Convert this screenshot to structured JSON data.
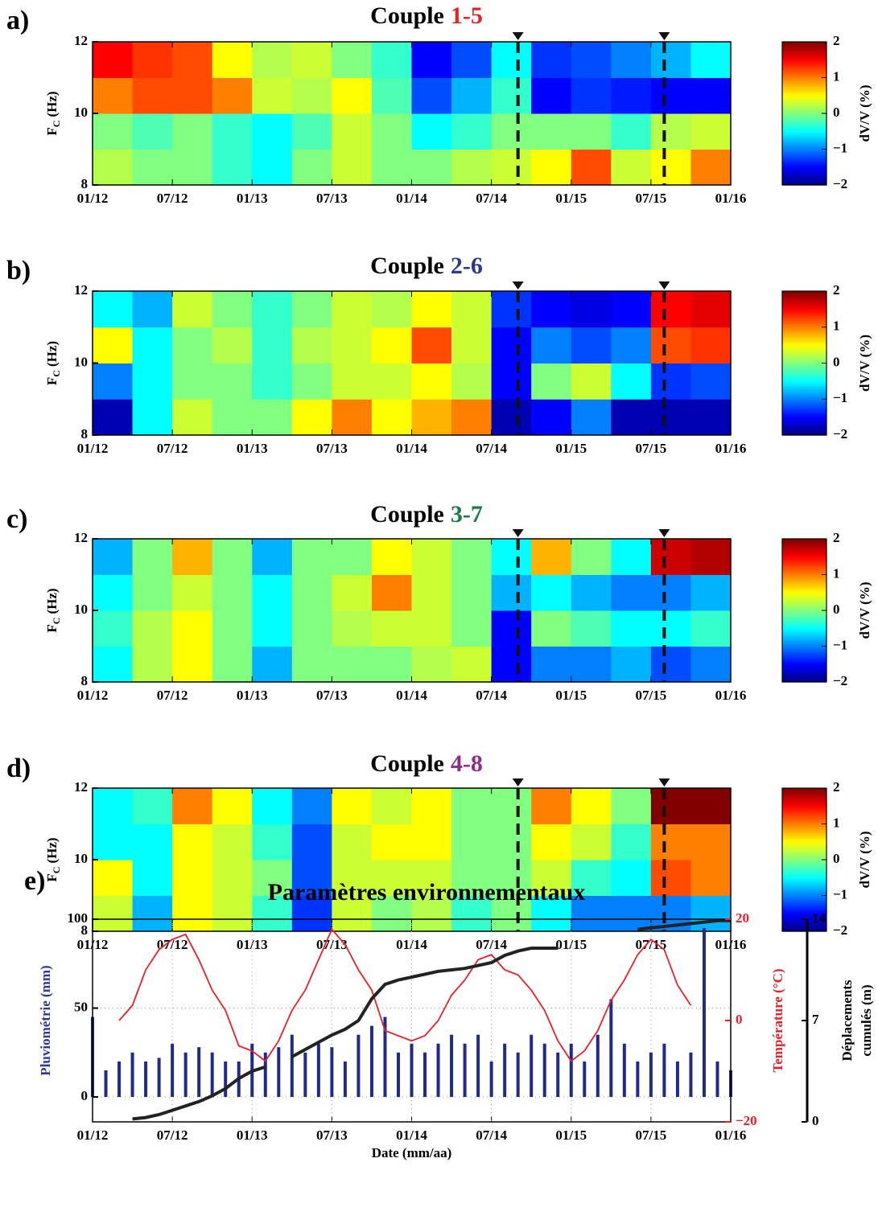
{
  "chart_data": [
    {
      "type": "heatmap",
      "panel_label": "a)",
      "title": "Couple",
      "title_highlight": "1-5",
      "title_highlight_color": "#e8202a",
      "x": [
        "01/12",
        "04/12",
        "07/12",
        "10/12",
        "01/13",
        "04/13",
        "07/13",
        "10/13",
        "01/14",
        "04/14",
        "07/14",
        "10/14",
        "01/15",
        "04/15",
        "07/15",
        "10/15",
        "01/16"
      ],
      "y": [
        8,
        9,
        10,
        11,
        12
      ],
      "values": [
        [
          0.2,
          0,
          0,
          -0.3,
          -0.5,
          0,
          0.3,
          0,
          0,
          0.2,
          0.3,
          0.5,
          1.2,
          0.3,
          0.5,
          1
        ],
        [
          0,
          -0.2,
          0,
          -0.3,
          -0.5,
          -0.2,
          0.3,
          0,
          -0.5,
          -0.3,
          0,
          0,
          0,
          -0.3,
          0.2,
          0.3
        ],
        [
          1,
          1.2,
          1.2,
          1,
          0.3,
          0.2,
          0.5,
          -0.2,
          -1.2,
          -0.8,
          -0.3,
          -1.5,
          -1.3,
          -1.4,
          -1.5,
          -1.5
        ],
        [
          1.5,
          1.3,
          1.2,
          0.5,
          0.2,
          0.3,
          0,
          -0.3,
          -1.5,
          -1.2,
          -0.5,
          -1.3,
          -1.2,
          -1,
          -0.8,
          -0.5
        ]
      ],
      "xticks": [
        "01/12",
        "07/12",
        "01/13",
        "07/13",
        "01/14",
        "07/14",
        "01/15",
        "07/15",
        "01/16"
      ],
      "ylim": [
        8,
        12
      ],
      "yticks": [
        8,
        10,
        12
      ],
      "ylabel": {
        "main": "F",
        "sub": "C",
        "unit": "(Hz)"
      },
      "colormap": "jet",
      "clim": [
        -2,
        2
      ],
      "colorbar_ticks": [
        {
          "value": -2,
          "label": "−2"
        },
        {
          "value": -1,
          "label": "−1"
        },
        0,
        1,
        2
      ],
      "colorbar_label": "dV/V (%)",
      "events": [
        "09/14",
        "08/15"
      ]
    },
    {
      "type": "heatmap",
      "panel_label": "b)",
      "title": "Couple",
      "title_highlight": "2-6",
      "title_highlight_color": "#2b3990",
      "x": [
        "01/12",
        "04/12",
        "07/12",
        "10/12",
        "01/13",
        "04/13",
        "07/13",
        "10/13",
        "01/14",
        "04/14",
        "07/14",
        "10/14",
        "01/15",
        "04/15",
        "07/15",
        "10/15",
        "01/16"
      ],
      "y": [
        8,
        9,
        10,
        11,
        12
      ],
      "values": [
        [
          -1.8,
          -0.5,
          0.3,
          0,
          0,
          0.5,
          1,
          0.5,
          0.8,
          1,
          -1.8,
          -1.5,
          -1,
          -1.8,
          -1.8,
          -1.8
        ],
        [
          -1,
          -0.5,
          0,
          0,
          -0.3,
          0,
          0.3,
          0.3,
          0.5,
          0.2,
          -1.5,
          0,
          0.3,
          -0.5,
          -1.3,
          -1.2
        ],
        [
          0.5,
          -0.5,
          0,
          0.2,
          -0.3,
          0.2,
          0.3,
          0.5,
          1.2,
          0.3,
          -1.5,
          -1,
          -1.2,
          -1,
          1.2,
          1.3
        ],
        [
          -0.5,
          -0.8,
          0.3,
          0,
          -0.3,
          0,
          0.3,
          0.2,
          0.5,
          0.3,
          -1.3,
          -1.5,
          -1.6,
          -1.5,
          1.5,
          1.6
        ]
      ],
      "xticks": [
        "01/12",
        "07/12",
        "01/13",
        "07/13",
        "01/14",
        "07/14",
        "01/15",
        "07/15",
        "01/16"
      ],
      "ylim": [
        8,
        12
      ],
      "yticks": [
        8,
        10,
        12
      ],
      "ylabel": {
        "main": "F",
        "sub": "C",
        "unit": "(Hz)"
      },
      "colormap": "jet",
      "clim": [
        -2,
        2
      ],
      "colorbar_ticks": [
        {
          "value": -2,
          "label": "−2"
        },
        {
          "value": -1,
          "label": "−1"
        },
        0,
        1,
        2
      ],
      "colorbar_label": "dV/V (%)",
      "events": [
        "09/14",
        "08/15"
      ]
    },
    {
      "type": "heatmap",
      "panel_label": "c)",
      "title": "Couple",
      "title_highlight": "3-7",
      "title_highlight_color": "#1d7a45",
      "x": [
        "01/12",
        "04/12",
        "07/12",
        "10/12",
        "01/13",
        "04/13",
        "07/13",
        "10/13",
        "01/14",
        "04/14",
        "07/14",
        "10/14",
        "01/15",
        "04/15",
        "07/15",
        "10/15",
        "01/16"
      ],
      "y": [
        8,
        9,
        10,
        11,
        12
      ],
      "values": [
        [
          -0.5,
          0.2,
          0.5,
          0,
          -0.8,
          0,
          0,
          0,
          0.2,
          0.3,
          -1.5,
          -1,
          -1,
          -0.8,
          -1.2,
          -1
        ],
        [
          -0.3,
          0.2,
          0.5,
          0,
          -0.5,
          0,
          0.2,
          0.3,
          0.3,
          0,
          -1.5,
          0,
          -0.2,
          -0.5,
          -0.5,
          -0.3
        ],
        [
          -0.5,
          0,
          0.3,
          0,
          -0.5,
          0,
          0.3,
          1,
          0.3,
          0,
          -0.8,
          -0.5,
          -0.8,
          -1,
          -1,
          -0.8
        ],
        [
          -0.8,
          0,
          0.8,
          0,
          -0.8,
          0,
          0,
          0.5,
          0.3,
          0,
          -0.5,
          0.8,
          0,
          -0.5,
          1.7,
          1.8
        ]
      ],
      "xticks": [
        "01/12",
        "07/12",
        "01/13",
        "07/13",
        "01/14",
        "07/14",
        "01/15",
        "07/15",
        "01/16"
      ],
      "ylim": [
        8,
        12
      ],
      "yticks": [
        8,
        10,
        12
      ],
      "ylabel": {
        "main": "F",
        "sub": "C",
        "unit": "(Hz)"
      },
      "colormap": "jet",
      "clim": [
        -2,
        2
      ],
      "colorbar_ticks": [
        {
          "value": -2,
          "label": "−2"
        },
        {
          "value": -1,
          "label": "−1"
        },
        0,
        1,
        2
      ],
      "colorbar_label": "dV/V (%)",
      "events": [
        "09/14",
        "08/15"
      ]
    },
    {
      "type": "heatmap",
      "panel_label": "d)",
      "title": "Couple",
      "title_highlight": "4-8",
      "title_highlight_color": "#8e2c8f",
      "x": [
        "01/12",
        "04/12",
        "07/12",
        "10/12",
        "01/13",
        "04/13",
        "07/13",
        "10/13",
        "01/14",
        "04/14",
        "07/14",
        "10/14",
        "01/15",
        "04/15",
        "07/15",
        "10/15",
        "01/16"
      ],
      "y": [
        8,
        9,
        10,
        11,
        12
      ],
      "values": [
        [
          0.3,
          -0.8,
          0.5,
          0.3,
          -0.3,
          -1.3,
          0.3,
          0,
          0.2,
          -0.3,
          0,
          -0.5,
          -1,
          -1,
          -1,
          -0.8
        ],
        [
          0.5,
          -0.5,
          0.5,
          0.3,
          0,
          -1.2,
          0.3,
          0.3,
          0.3,
          0,
          0,
          0.3,
          -0.3,
          -0.5,
          1.2,
          1
        ],
        [
          -0.5,
          -0.5,
          0.5,
          0.3,
          -0.3,
          -1.2,
          0.3,
          0.5,
          0.5,
          0,
          0,
          0.5,
          0.3,
          -0.3,
          1,
          1
        ],
        [
          -0.5,
          -0.3,
          1,
          0.5,
          -0.5,
          -1,
          0.5,
          0.3,
          0.5,
          0,
          0,
          1,
          0.5,
          0,
          2,
          2
        ]
      ],
      "xticks": [
        "01/12",
        "07/12",
        "01/13",
        "07/13",
        "01/14",
        "07/14",
        "01/15",
        "07/15",
        "01/16"
      ],
      "ylim": [
        8,
        12
      ],
      "yticks": [
        8,
        10,
        12
      ],
      "ylabel": {
        "main": "F",
        "sub": "C",
        "unit": "(Hz)"
      },
      "colormap": "jet",
      "clim": [
        -2,
        2
      ],
      "colorbar_ticks": [
        {
          "value": -2,
          "label": "−2"
        },
        {
          "value": -1,
          "label": "−1"
        },
        0,
        1,
        2
      ],
      "colorbar_label": "dV/V (%)",
      "events": [
        "09/14",
        "08/15"
      ]
    },
    {
      "type": "multi_axis",
      "panel_label": "e)",
      "title": "Paramètres environnementaux",
      "x": [
        "01/12",
        "02/12",
        "03/12",
        "04/12",
        "05/12",
        "06/12",
        "07/12",
        "08/12",
        "09/12",
        "10/12",
        "11/12",
        "12/12",
        "01/13",
        "02/13",
        "03/13",
        "04/13",
        "05/13",
        "06/13",
        "07/13",
        "08/13",
        "09/13",
        "10/13",
        "11/13",
        "12/13",
        "01/14",
        "02/14",
        "03/14",
        "04/14",
        "05/14",
        "06/14",
        "07/14",
        "08/14",
        "09/14",
        "10/14",
        "11/14",
        "12/14",
        "01/15",
        "02/15",
        "03/15",
        "04/15",
        "05/15",
        "06/15",
        "07/15",
        "08/15",
        "09/15",
        "10/15",
        "11/15",
        "12/15",
        "01/16"
      ],
      "series": [
        {
          "kind": "bar",
          "axis": "y",
          "color": "#1f2a8a",
          "values": [
            45,
            15,
            20,
            25,
            20,
            22,
            30,
            25,
            28,
            25,
            20,
            20,
            30,
            25,
            28,
            35,
            25,
            30,
            28,
            20,
            35,
            40,
            45,
            25,
            30,
            25,
            30,
            35,
            30,
            35,
            20,
            30,
            25,
            35,
            30,
            25,
            30,
            20,
            35,
            55,
            30,
            20,
            25,
            30,
            20,
            25,
            95,
            20,
            15
          ]
        },
        {
          "kind": "line",
          "axis": "y2",
          "color": "#e8202a",
          "values": [
            null,
            null,
            0,
            3,
            10,
            14,
            16,
            17,
            12,
            6,
            2,
            -5,
            -6,
            -8,
            -4,
            2,
            6,
            12,
            18,
            15,
            10,
            6,
            -2,
            -3,
            -4,
            -3,
            0,
            5,
            8,
            12,
            13,
            10,
            9,
            6,
            2,
            -4,
            -8,
            -6,
            -2,
            4,
            8,
            13,
            16,
            14,
            7,
            3,
            null,
            null,
            null
          ]
        },
        {
          "kind": "line",
          "axis": "y3",
          "color": "#222222",
          "values": [
            null,
            null,
            null,
            0.2,
            0.3,
            0.5,
            0.8,
            1.1,
            1.4,
            1.8,
            2.3,
            3.0,
            3.5,
            3.8,
            null,
            4.5,
            5.0,
            5.5,
            6.0,
            6.4,
            7.0,
            8.5,
            9.5,
            9.8,
            10.0,
            10.2,
            10.4,
            10.5,
            10.6,
            10.8,
            11.0,
            11.5,
            11.8,
            12.0,
            12.0,
            12.0,
            null,
            null,
            null,
            null,
            null,
            13.3,
            13.4,
            13.5,
            13.6,
            13.7,
            13.8,
            13.9,
            13.9
          ]
        }
      ],
      "xticks": [
        "01/12",
        "07/12",
        "01/13",
        "07/13",
        "01/14",
        "07/14",
        "01/15",
        "07/15",
        "01/16"
      ],
      "xlabel": "Date (mm/aa)",
      "ylim": [
        -14,
        100
      ],
      "yticks": [
        0,
        50,
        100
      ],
      "ylabel": "Pluviométrie (mm)",
      "ylabel_color": "#2b3990",
      "y2lim": [
        -20,
        20
      ],
      "y2ticks": [
        {
          "value": -20,
          "label": "−20"
        },
        0,
        20
      ],
      "y2label": "Température (°C)",
      "y2label_color": "#e8202a",
      "y3lim": [
        0,
        14
      ],
      "y3ticks": [
        0,
        7,
        14
      ],
      "y3label": [
        "Déplacements",
        "cumulés (m)"
      ],
      "grid": true
    }
  ]
}
